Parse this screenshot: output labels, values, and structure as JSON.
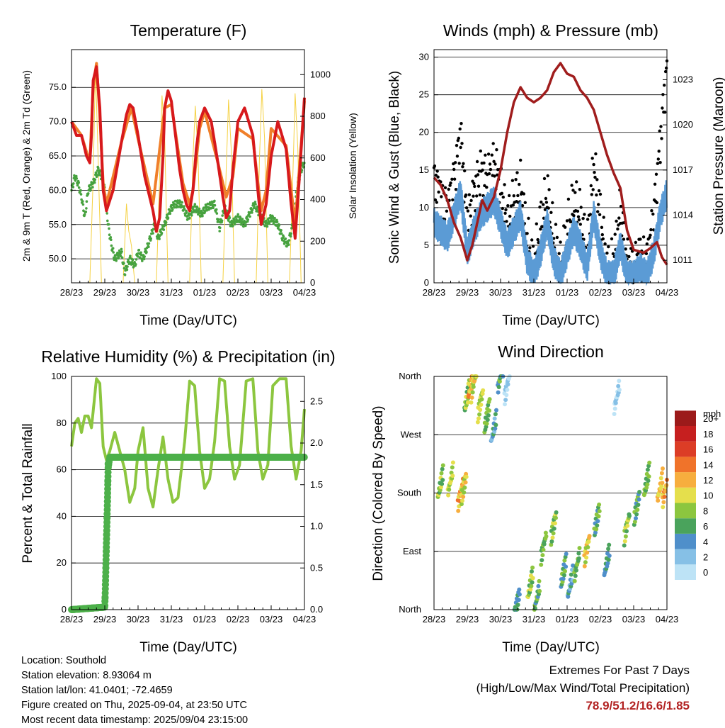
{
  "colors": {
    "temp_2m": "#d7191c",
    "temp_9m": "#f07f2a",
    "dewpoint": "#47a23f",
    "solar": "#f5d142",
    "wind": "#5b9bd5",
    "gust": "#000000",
    "pressure": "#a01d1d",
    "rh": "#8cc63f",
    "precip": "#4db04a",
    "extremes": "#b22222"
  },
  "panels": {
    "temperature": {
      "title": "Temperature (F)",
      "ylabel_left": "2m & 9m T (Red, Orange) & 2m Td (Green)",
      "ylabel_right": "Solar Insolation (Yellow)",
      "xlabel": "Time (Day/UTC)",
      "left_ticks": [
        "50.0",
        "55.0",
        "60.0",
        "65.0",
        "70.0",
        "75.0"
      ],
      "right_ticks": [
        "0",
        "200",
        "400",
        "600",
        "800",
        "1000"
      ]
    },
    "winds": {
      "title": "Winds (mph) & Pressure (mb)",
      "ylabel_left": "Sonic Wind & Gust (Blue, Black)",
      "ylabel_right": "Station Pressure (Maroon)",
      "xlabel": "Time (Day/UTC)",
      "left_ticks": [
        "0",
        "5",
        "10",
        "15",
        "20",
        "25",
        "30"
      ],
      "right_ticks": [
        "1011",
        "1014",
        "1017",
        "1020",
        "1023"
      ]
    },
    "humidity": {
      "title": "Relative Humidity (%) & Precipitation (in)",
      "ylabel_left": "Percent & Total Rainfall",
      "xlabel": "Time (Day/UTC)",
      "left_ticks": [
        "0",
        "20",
        "40",
        "60",
        "80",
        "100"
      ],
      "right_ticks": [
        "0.0",
        "0.5",
        "1.0",
        "1.5",
        "2.0",
        "2.5"
      ]
    },
    "direction": {
      "title": "Wind Direction",
      "ylabel_left": "Direction (Colored By Speed)",
      "xlabel": "Time (Day/UTC)",
      "dir_ticks": [
        "North",
        "East",
        "South",
        "West",
        "North"
      ],
      "legend_title": "mph",
      "legend_labels": [
        "0",
        "2",
        "4",
        "6",
        "8",
        "10",
        "12",
        "14",
        "16",
        "18",
        "20+"
      ],
      "legend_colors": [
        "#bde3f6",
        "#86c0e6",
        "#4f8fca",
        "#4aa35c",
        "#8cc63f",
        "#e5df4c",
        "#f7ae3e",
        "#f0732a",
        "#dc3d26",
        "#c61f1f",
        "#9c1a1a"
      ]
    }
  },
  "x_ticks": [
    "28/23",
    "29/23",
    "30/23",
    "31/23",
    "01/23",
    "02/23",
    "03/23",
    "04/23"
  ],
  "info": {
    "location": "Location: Southold",
    "elevation": "Station elevation: 8.93064 m",
    "latlon": "Station lat/lon: 41.0401; -72.4659",
    "created": "Figure created on Thu, 2025-09-04, at 23:50 UTC",
    "latest": "Most recent data timestamp: 2025/09/04 23:15:00"
  },
  "extremes": {
    "heading": "Extremes For Past 7 Days",
    "subheading": "(High/Low/Max Wind/Total Precipitation)",
    "values": "78.9/51.2/16.6/1.85"
  },
  "chart_data": [
    {
      "type": "line",
      "title": "Temperature (F)",
      "xlabel": "Time (Day/UTC)",
      "ylabel": "2m & 9m T (Red, Orange) & 2m Td (Green)",
      "y2label": "Solar Insolation (Yellow)",
      "x_unit": "days since 28/23 UTC",
      "ylim": [
        46.5,
        80.5
      ],
      "y2lim": [
        0,
        1120
      ],
      "series": [
        {
          "name": "2m T",
          "axis": "left",
          "color": "#d7191c",
          "x": [
            0,
            0.15,
            0.3,
            0.45,
            0.55,
            0.6,
            0.65,
            0.75,
            0.85,
            0.95,
            1.05,
            1.25,
            1.5,
            1.65,
            1.75,
            1.85,
            2.0,
            2.2,
            2.45,
            2.55,
            2.65,
            2.75,
            2.8,
            2.9,
            3.0,
            3.15,
            3.25,
            3.35,
            3.45,
            3.55,
            3.65,
            3.75,
            3.85,
            4.0,
            4.2,
            4.4,
            4.55,
            4.65,
            4.75,
            4.85,
            5.0,
            5.2,
            5.45,
            5.6,
            5.7,
            5.85,
            6.0,
            6.2,
            6.45,
            6.6,
            6.72,
            6.85,
            7.0
          ],
          "values": [
            70,
            68,
            68,
            65,
            64,
            68,
            76,
            78,
            72,
            60,
            57,
            60,
            67,
            71,
            72.5,
            72,
            68,
            62,
            57,
            54,
            56,
            65,
            72,
            74.5,
            73,
            67,
            63,
            60,
            58,
            57,
            60,
            66,
            70,
            72,
            70,
            64,
            59,
            56,
            57,
            63,
            70,
            72,
            68,
            60,
            55,
            58,
            65,
            70,
            66,
            58,
            53,
            62,
            73.5
          ]
        },
        {
          "name": "9m T",
          "axis": "left",
          "color": "#f07f2a",
          "x": [
            0,
            0.3,
            0.55,
            0.65,
            0.75,
            0.85,
            0.95,
            1.05,
            1.5,
            1.8,
            2.0,
            2.45,
            2.8,
            3.0,
            3.35,
            3.55,
            3.65,
            3.85,
            4.0,
            4.4,
            4.65,
            4.85,
            5.0,
            5.45,
            5.7,
            5.85,
            6.0,
            6.45,
            6.72,
            7.0
          ],
          "values": [
            70,
            68,
            64,
            75,
            78.5,
            71,
            61,
            58,
            67,
            72,
            67.5,
            58,
            72,
            72.5,
            61,
            58,
            60,
            69,
            71.5,
            64,
            59,
            62,
            69,
            67.5,
            57,
            60,
            69,
            66.5,
            55,
            73
          ]
        },
        {
          "name": "2m Td",
          "axis": "left",
          "color": "#47a23f",
          "x": [
            0,
            0.1,
            0.2,
            0.3,
            0.4,
            0.5,
            0.65,
            0.8,
            0.9,
            1.0,
            1.1,
            1.2,
            1.3,
            1.5,
            1.6,
            1.75,
            1.9,
            2.0,
            2.15,
            2.3,
            2.5,
            2.6,
            2.7,
            2.8,
            2.95,
            3.1,
            3.3,
            3.5,
            3.7,
            3.9,
            4.05,
            4.3,
            4.45,
            4.6,
            4.8,
            5.0,
            5.2,
            5.5,
            5.7,
            5.85,
            6.0,
            6.2,
            6.35,
            6.5,
            6.65,
            6.8,
            6.9,
            7.0
          ],
          "values": [
            60,
            62,
            61,
            59,
            56,
            60,
            61,
            63,
            62,
            60,
            55,
            52,
            50,
            51,
            48,
            50,
            49,
            51,
            50,
            52,
            55,
            53,
            54,
            55,
            57,
            58,
            58,
            56,
            57.5,
            56.5,
            57.5,
            58,
            54.5,
            57.5,
            55,
            56,
            55,
            58,
            56,
            55,
            56,
            55,
            53,
            52,
            55,
            61,
            63,
            64
          ]
        },
        {
          "name": "Solar",
          "axis": "right",
          "color": "#f5d142",
          "x": [
            0.55,
            0.65,
            0.72,
            0.8,
            0.9,
            1.55,
            1.65,
            1.72,
            1.8,
            1.9,
            2.55,
            2.65,
            2.72,
            2.8,
            2.9,
            3.55,
            3.65,
            3.72,
            3.8,
            3.9,
            4.55,
            4.65,
            4.72,
            4.8,
            4.9,
            5.55,
            5.65,
            5.72,
            5.8,
            5.9,
            6.55,
            6.65,
            6.72,
            6.8,
            6.9
          ],
          "values": [
            0,
            500,
            1040,
            600,
            0,
            0,
            380,
            250,
            180,
            0,
            0,
            520,
            900,
            700,
            0,
            0,
            600,
            850,
            620,
            0,
            0,
            550,
            880,
            640,
            0,
            0,
            600,
            930,
            700,
            0,
            0,
            500,
            910,
            650,
            0
          ]
        }
      ]
    },
    {
      "type": "line",
      "title": "Winds (mph) & Pressure (mb)",
      "xlabel": "Time (Day/UTC)",
      "ylabel": "Sonic Wind & Gust (Blue, Black)",
      "y2label": "Station Pressure (Maroon)",
      "x_unit": "days since 28/23 UTC",
      "ylim": [
        0,
        31
      ],
      "y2lim": [
        1009.5,
        1025.0
      ],
      "series": [
        {
          "name": "Pressure",
          "axis": "right",
          "color": "#a01d1d",
          "x": [
            0,
            0.2,
            0.4,
            0.6,
            0.8,
            1.0,
            1.15,
            1.3,
            1.45,
            1.6,
            1.8,
            2.0,
            2.2,
            2.4,
            2.6,
            2.8,
            3.0,
            3.2,
            3.4,
            3.6,
            3.8,
            4.0,
            4.2,
            4.4,
            4.6,
            4.8,
            5.0,
            5.2,
            5.4,
            5.6,
            5.8,
            6.0,
            6.15,
            6.3,
            6.5,
            6.7,
            6.85,
            7.0
          ],
          "values": [
            1016.5,
            1016,
            1015,
            1013.5,
            1012.5,
            1011,
            1012,
            1013.5,
            1015,
            1014.3,
            1015.2,
            1017,
            1019.5,
            1021.5,
            1022.5,
            1021.8,
            1021.5,
            1021.8,
            1022.3,
            1023.5,
            1024.1,
            1023.4,
            1023.2,
            1022.3,
            1021.8,
            1021,
            1019.5,
            1018,
            1016.8,
            1015.8,
            1013,
            1011.7,
            1011.6,
            1011.5,
            1011.8,
            1012.2,
            1011.2,
            1010.7
          ]
        },
        {
          "name": "Wind",
          "axis": "left",
          "color": "#5b9bd5",
          "x": [
            0,
            0.2,
            0.4,
            0.6,
            0.8,
            1.0,
            1.2,
            1.4,
            1.6,
            1.8,
            2.0,
            2.2,
            2.4,
            2.6,
            2.8,
            3.0,
            3.2,
            3.4,
            3.6,
            3.8,
            4.0,
            4.2,
            4.4,
            4.6,
            4.8,
            5.0,
            5.2,
            5.4,
            5.6,
            5.8,
            6.0,
            6.2,
            6.4,
            6.6,
            6.8,
            7.0
          ],
          "values": [
            8,
            7,
            6,
            9,
            12,
            4,
            7,
            9,
            10,
            11,
            8,
            5,
            7,
            9,
            3,
            1,
            4,
            8,
            3,
            1,
            4,
            7,
            5,
            2,
            9,
            4,
            1,
            1,
            5,
            1,
            1,
            2,
            1,
            4,
            9,
            12
          ]
        },
        {
          "name": "Gust",
          "axis": "left",
          "color": "#000000",
          "x": [
            0,
            0.2,
            0.4,
            0.6,
            0.8,
            1.0,
            1.2,
            1.4,
            1.6,
            1.8,
            2.0,
            2.2,
            2.4,
            2.6,
            2.8,
            3.0,
            3.2,
            3.4,
            3.6,
            3.8,
            4.0,
            4.2,
            4.4,
            4.6,
            4.8,
            5.0,
            5.2,
            5.4,
            5.6,
            5.8,
            6.0,
            6.2,
            6.4,
            6.6,
            6.8,
            7.0
          ],
          "values": [
            14,
            12,
            10,
            14,
            20,
            8,
            12,
            15,
            14,
            16,
            13,
            8,
            11,
            13,
            6,
            2,
            8,
            12,
            6,
            2,
            7,
            11,
            9,
            4,
            16,
            9,
            2,
            3,
            10,
            3,
            2,
            4,
            3,
            9,
            19,
            29
          ]
        }
      ]
    },
    {
      "type": "line",
      "title": "Relative Humidity (%) & Precipitation (in)",
      "xlabel": "Time (Day/UTC)",
      "ylabel": "Percent & Total Rainfall",
      "x_unit": "days since 28/23 UTC",
      "ylim": [
        0,
        100
      ],
      "y2lim": [
        0,
        2.8
      ],
      "series": [
        {
          "name": "RH",
          "axis": "left",
          "color": "#8cc63f",
          "x": [
            0,
            0.1,
            0.2,
            0.3,
            0.4,
            0.5,
            0.6,
            0.75,
            0.85,
            0.95,
            1.05,
            1.15,
            1.3,
            1.45,
            1.6,
            1.75,
            1.9,
            2.0,
            2.15,
            2.3,
            2.45,
            2.6,
            2.75,
            2.9,
            3.05,
            3.2,
            3.4,
            3.55,
            3.7,
            3.85,
            4.0,
            4.15,
            4.3,
            4.45,
            4.6,
            4.75,
            4.9,
            5.05,
            5.25,
            5.45,
            5.6,
            5.75,
            5.9,
            6.05,
            6.25,
            6.45,
            6.6,
            6.75,
            6.9,
            7.0
          ],
          "values": [
            70,
            80,
            82,
            76,
            83,
            83,
            78,
            99,
            97,
            70,
            64,
            68,
            76,
            68,
            60,
            46,
            52,
            68,
            78,
            52,
            44,
            60,
            74,
            56,
            46,
            48,
            72,
            98,
            96,
            68,
            52,
            56,
            72,
            99,
            98,
            70,
            56,
            62,
            98,
            99,
            68,
            56,
            62,
            96,
            99,
            99,
            70,
            56,
            68,
            86
          ]
        },
        {
          "name": "Total Rainfall",
          "axis": "right",
          "color": "#4db04a",
          "x": [
            0,
            1.0,
            1.02,
            1.05,
            1.08,
            1.1,
            1.15,
            7.0
          ],
          "values": [
            0.0,
            0.03,
            0.3,
            0.8,
            1.3,
            1.7,
            1.83,
            1.83
          ]
        }
      ]
    },
    {
      "type": "scatter",
      "title": "Wind Direction",
      "xlabel": "Time (Day/UTC)",
      "ylabel": "Direction (Colored By Speed)",
      "x_unit": "days since 28/23 UTC",
      "y_unit": "degrees (North 0 / East 90 / South 180 / West 270 / North 360)",
      "ylim": [
        0,
        360
      ],
      "series": [
        {
          "name": "direction",
          "colored_by": "speed (mph)",
          "x": [
            0.2,
            0.5,
            0.8,
            0.9,
            1.0,
            1.1,
            1.2,
            1.4,
            1.6,
            1.8,
            2.0,
            2.2,
            2.5,
            2.9,
            3.1,
            3.3,
            3.6,
            3.9,
            4.1,
            4.3,
            4.6,
            4.9,
            5.2,
            5.5,
            5.8,
            6.1,
            6.4,
            6.8,
            6.95
          ],
          "values": [
            195,
            200,
            180,
            190,
            330,
            345,
            350,
            320,
            300,
            280,
            360,
            345,
            10,
            40,
            20,
            100,
            130,
            60,
            40,
            70,
            95,
            140,
            75,
            330,
            130,
            160,
            200,
            190,
            185
          ],
          "speed": [
            8,
            9,
            12,
            10,
            8,
            12,
            10,
            9,
            7,
            4,
            6,
            1,
            5,
            8,
            6,
            7,
            8,
            6,
            4,
            7,
            10,
            6,
            5,
            1,
            8,
            6,
            7,
            11,
            12
          ]
        }
      ]
    }
  ]
}
